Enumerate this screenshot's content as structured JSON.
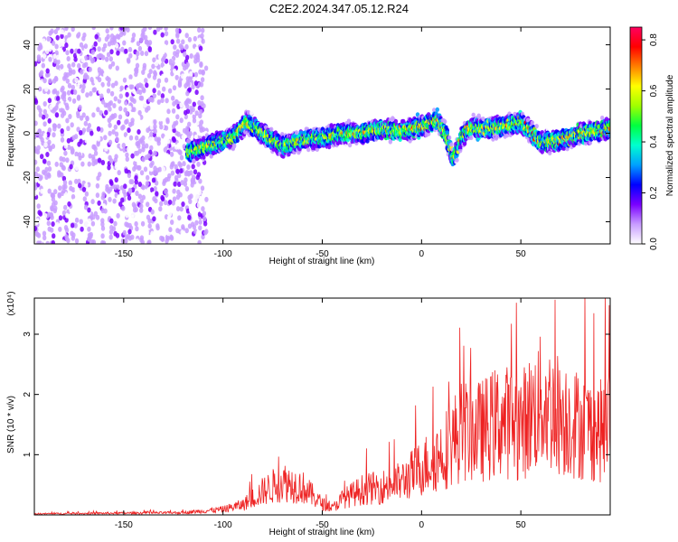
{
  "title": "C2E2.2024.347.05.12.R24",
  "chart_data": [
    {
      "type": "heatmap",
      "xlabel": "Height of straight line (km)",
      "ylabel": "Frequency (Hz)",
      "xlim": [
        -195,
        95
      ],
      "ylim": [
        -50,
        48
      ],
      "xticks": [
        -150,
        -100,
        -50,
        0,
        50
      ],
      "yticks": [
        -40,
        -20,
        0,
        20,
        40
      ],
      "colorbar": {
        "label": "Normalized spectral amplitude",
        "range": [
          0,
          0.85
        ],
        "ticks": [
          0,
          0.2,
          0.4,
          0.6,
          0.8
        ],
        "colors": [
          "#ffffff",
          "#c89cff",
          "#7a00ff",
          "#0000ff",
          "#00a0ff",
          "#00ffd0",
          "#00ff40",
          "#a0ff00",
          "#ffff00",
          "#ff8000",
          "#ff0000",
          "#ff0060"
        ]
      },
      "ridge": {
        "x": [
          -115,
          -105,
          -95,
          -88,
          -80,
          -70,
          -60,
          -50,
          -40,
          -30,
          -20,
          -10,
          0,
          8,
          12,
          16,
          20,
          25,
          30,
          40,
          50,
          60,
          70,
          80,
          90,
          95
        ],
        "frequency": [
          -8,
          -5,
          -2,
          5,
          0,
          -6,
          -3,
          -2,
          0,
          0,
          2,
          1,
          3,
          6,
          0,
          -12,
          -2,
          3,
          2,
          3,
          5,
          -4,
          -3,
          0,
          1,
          2
        ]
      }
    },
    {
      "type": "line",
      "xlabel": "Height of straight line (km)",
      "ylabel": "SNR (10 * v/v)",
      "y_multiplier": "(x10⁴)",
      "xlim": [
        -195,
        95
      ],
      "ylim": [
        0,
        3.6
      ],
      "xticks": [
        -150,
        -100,
        -50,
        0,
        50
      ],
      "yticks": [
        1,
        2,
        3
      ],
      "series": [
        {
          "color": "#ee2222",
          "envelope_x": [
            -195,
            -120,
            -100,
            -90,
            -80,
            -70,
            -60,
            -50,
            -45,
            -40,
            -30,
            -20,
            -10,
            0,
            10,
            15,
            20,
            30,
            40,
            50,
            60,
            70,
            80,
            90,
            95
          ],
          "envelope_y": [
            0.02,
            0.04,
            0.1,
            0.18,
            0.42,
            0.6,
            0.5,
            0.2,
            0.12,
            0.28,
            0.45,
            0.5,
            0.6,
            0.85,
            1.1,
            1.3,
            1.5,
            1.5,
            1.7,
            1.6,
            2.0,
            1.8,
            1.6,
            1.5,
            1.6
          ]
        }
      ]
    }
  ]
}
